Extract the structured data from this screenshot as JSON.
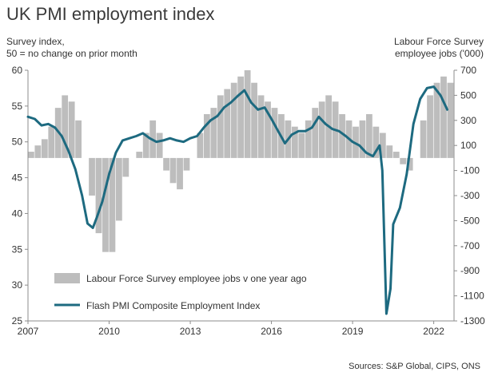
{
  "chart_data": {
    "type": "bar+line",
    "title": "UK PMI employment index",
    "y_left_label": [
      "Survey index,",
      "50 = no change on prior month"
    ],
    "y_right_label": [
      "Labour Force Survey",
      "employee jobs  ('000)"
    ],
    "source": "Sources: S&P Global, CIPS, ONS",
    "y_left_lim": [
      25,
      60
    ],
    "y_left_ticks": [
      "25",
      "30",
      "35",
      "40",
      "45",
      "50",
      "55",
      "60"
    ],
    "y_right_lim": [
      -1300,
      700
    ],
    "y_right_ticks": [
      "700",
      "500",
      "300",
      "100",
      "-100",
      "-300",
      "-500",
      "-700",
      "-900",
      "-1100",
      "-1300"
    ],
    "x_lim": [
      2007.0,
      2022.75
    ],
    "x_ticks": [
      "2007",
      "2010",
      "2013",
      "2016",
      "2019",
      "2022"
    ],
    "bar_series": {
      "name": "Labour Force Survey employee jobs v one year ago",
      "color": "#bdbdbd",
      "points": [
        [
          2007.0,
          50
        ],
        [
          2007.25,
          100
        ],
        [
          2007.5,
          150
        ],
        [
          2007.75,
          250
        ],
        [
          2008.0,
          400
        ],
        [
          2008.25,
          500
        ],
        [
          2008.5,
          450
        ],
        [
          2008.75,
          300
        ],
        [
          2009.0,
          0
        ],
        [
          2009.25,
          -300
        ],
        [
          2009.5,
          -600
        ],
        [
          2009.75,
          -750
        ],
        [
          2010.0,
          -750
        ],
        [
          2010.25,
          -500
        ],
        [
          2010.5,
          -150
        ],
        [
          2010.75,
          0
        ],
        [
          2011.0,
          50
        ],
        [
          2011.25,
          200
        ],
        [
          2011.5,
          300
        ],
        [
          2011.75,
          200
        ],
        [
          2012.0,
          -100
        ],
        [
          2012.25,
          -200
        ],
        [
          2012.5,
          -250
        ],
        [
          2012.75,
          -100
        ],
        [
          2013.0,
          0
        ],
        [
          2013.25,
          200
        ],
        [
          2013.5,
          350
        ],
        [
          2013.75,
          400
        ],
        [
          2014.0,
          500
        ],
        [
          2014.25,
          550
        ],
        [
          2014.5,
          600
        ],
        [
          2014.75,
          650
        ],
        [
          2015.0,
          700
        ],
        [
          2015.25,
          600
        ],
        [
          2015.5,
          500
        ],
        [
          2015.75,
          450
        ],
        [
          2016.0,
          400
        ],
        [
          2016.25,
          350
        ],
        [
          2016.5,
          300
        ],
        [
          2016.75,
          250
        ],
        [
          2017.0,
          200
        ],
        [
          2017.25,
          300
        ],
        [
          2017.5,
          400
        ],
        [
          2017.75,
          450
        ],
        [
          2018.0,
          500
        ],
        [
          2018.25,
          450
        ],
        [
          2018.5,
          350
        ],
        [
          2018.75,
          300
        ],
        [
          2019.0,
          250
        ],
        [
          2019.25,
          300
        ],
        [
          2019.5,
          350
        ],
        [
          2019.75,
          250
        ],
        [
          2020.0,
          200
        ],
        [
          2020.25,
          100
        ],
        [
          2020.5,
          50
        ],
        [
          2020.75,
          -50
        ],
        [
          2021.0,
          -100
        ],
        [
          2021.25,
          0
        ],
        [
          2021.5,
          300
        ],
        [
          2021.75,
          500
        ],
        [
          2022.0,
          600
        ],
        [
          2022.25,
          650
        ],
        [
          2022.5,
          600
        ]
      ]
    },
    "line_series": {
      "name": "Flash PMI Composite Employment Index",
      "color": "#1d6a80",
      "points": [
        [
          2007.0,
          53.5
        ],
        [
          2007.25,
          53.2
        ],
        [
          2007.5,
          52.3
        ],
        [
          2007.75,
          52.5
        ],
        [
          2008.0,
          52.0
        ],
        [
          2008.25,
          50.8
        ],
        [
          2008.5,
          48.7
        ],
        [
          2008.75,
          46.2
        ],
        [
          2009.0,
          42.5
        ],
        [
          2009.2,
          38.6
        ],
        [
          2009.4,
          38.0
        ],
        [
          2009.55,
          39.5
        ],
        [
          2009.75,
          41.7
        ],
        [
          2010.0,
          45.5
        ],
        [
          2010.25,
          48.5
        ],
        [
          2010.5,
          50.2
        ],
        [
          2010.75,
          50.5
        ],
        [
          2011.0,
          50.8
        ],
        [
          2011.25,
          51.2
        ],
        [
          2011.5,
          50.5
        ],
        [
          2011.75,
          50.0
        ],
        [
          2012.0,
          50.2
        ],
        [
          2012.25,
          50.5
        ],
        [
          2012.5,
          50.2
        ],
        [
          2012.75,
          50.0
        ],
        [
          2013.0,
          50.5
        ],
        [
          2013.25,
          50.8
        ],
        [
          2013.5,
          52.0
        ],
        [
          2013.75,
          53.0
        ],
        [
          2014.0,
          53.6
        ],
        [
          2014.25,
          54.8
        ],
        [
          2014.5,
          55.5
        ],
        [
          2014.75,
          56.4
        ],
        [
          2015.0,
          57.2
        ],
        [
          2015.25,
          55.5
        ],
        [
          2015.5,
          54.5
        ],
        [
          2015.75,
          54.8
        ],
        [
          2016.0,
          53.2
        ],
        [
          2016.25,
          51.5
        ],
        [
          2016.5,
          49.8
        ],
        [
          2016.75,
          51.0
        ],
        [
          2017.0,
          51.5
        ],
        [
          2017.25,
          51.5
        ],
        [
          2017.5,
          52.0
        ],
        [
          2017.75,
          53.5
        ],
        [
          2018.0,
          52.5
        ],
        [
          2018.25,
          51.8
        ],
        [
          2018.5,
          51.5
        ],
        [
          2018.75,
          50.8
        ],
        [
          2019.0,
          50.0
        ],
        [
          2019.25,
          49.5
        ],
        [
          2019.5,
          48.5
        ],
        [
          2019.75,
          48.0
        ],
        [
          2020.0,
          49.5
        ],
        [
          2020.1,
          46.0
        ],
        [
          2020.25,
          26.0
        ],
        [
          2020.4,
          29.5
        ],
        [
          2020.5,
          38.5
        ],
        [
          2020.75,
          40.8
        ],
        [
          2021.0,
          45.5
        ],
        [
          2021.25,
          52.5
        ],
        [
          2021.5,
          56.0
        ],
        [
          2021.75,
          57.5
        ],
        [
          2022.0,
          57.7
        ],
        [
          2022.25,
          56.5
        ],
        [
          2022.5,
          54.5
        ]
      ]
    },
    "legend_position": "lower-left"
  }
}
